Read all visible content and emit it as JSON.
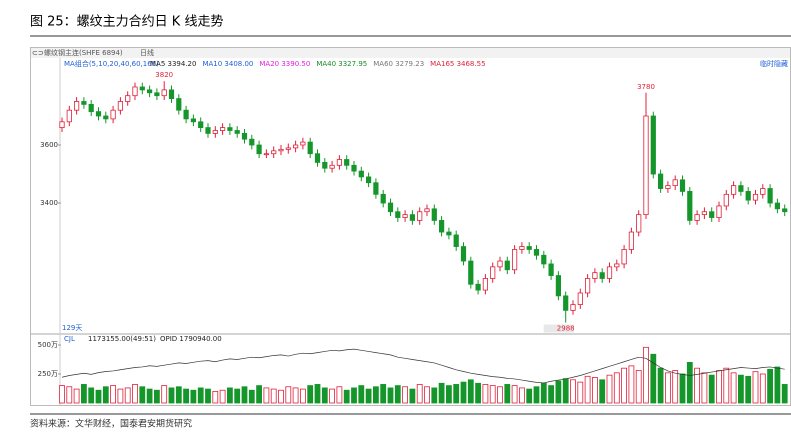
{
  "chart_data": {
    "type": "candlestick",
    "title": "图 25：螺纹主力合约日 K 线走势",
    "symbol": "螺纹钢主连(SHFE 6894)",
    "period": "日线",
    "ma_title": "MA组合(5,10,20,40,60,165)",
    "ma_labels": [
      {
        "text": "MA5 3394.20",
        "color": "#222222"
      },
      {
        "text": "MA10 3408.00",
        "color": "#1f5fd6"
      },
      {
        "text": "MA20 3390.50",
        "color": "#e020e0"
      },
      {
        "text": "MA40 3327.95",
        "color": "#1a8a2a"
      },
      {
        "text": "MA60 3279.23",
        "color": "#777777"
      },
      {
        "text": "MA165 3468.55",
        "color": "#e0203a"
      }
    ],
    "hide_label": "临时隐藏",
    "days_label": "129天",
    "up_color": "#e0203a",
    "down_color": "#14962a",
    "ylim": [
      2952,
      3893
    ],
    "yticks": [
      3600,
      3400
    ],
    "annotations": [
      "3820",
      "3780",
      "2988"
    ],
    "open": [
      3660,
      3680,
      3720,
      3750,
      3740,
      3715,
      3700,
      3690,
      3720,
      3750,
      3770,
      3800,
      3790,
      3780,
      3770,
      3790,
      3760,
      3720,
      3690,
      3680,
      3660,
      3640,
      3650,
      3660,
      3650,
      3640,
      3620,
      3600,
      3570,
      3570,
      3580,
      3585,
      3590,
      3600,
      3610,
      3570,
      3540,
      3520,
      3530,
      3550,
      3530,
      3510,
      3490,
      3470,
      3430,
      3400,
      3370,
      3350,
      3360,
      3340,
      3370,
      3380,
      3340,
      3300,
      3290,
      3250,
      3200,
      3120,
      3100,
      3140,
      3180,
      3200,
      3170,
      3240,
      3250,
      3240,
      3220,
      3190,
      3150,
      3080,
      3030,
      3050,
      3090,
      3140,
      3160,
      3140,
      3180,
      3190,
      3240,
      3300,
      3360,
      3700,
      3500,
      3450,
      3460,
      3480,
      3440,
      3340,
      3360,
      3370,
      3350,
      3390,
      3430,
      3460,
      3440,
      3410,
      3430,
      3450,
      3400,
      3380
    ],
    "high": [
      3695,
      3735,
      3765,
      3765,
      3755,
      3730,
      3715,
      3735,
      3765,
      3785,
      3815,
      3815,
      3805,
      3795,
      3820,
      3805,
      3775,
      3735,
      3705,
      3695,
      3675,
      3665,
      3675,
      3675,
      3665,
      3655,
      3635,
      3615,
      3585,
      3595,
      3600,
      3605,
      3615,
      3625,
      3625,
      3585,
      3555,
      3545,
      3565,
      3565,
      3545,
      3525,
      3505,
      3485,
      3445,
      3415,
      3385,
      3375,
      3375,
      3385,
      3395,
      3395,
      3355,
      3315,
      3305,
      3265,
      3215,
      3135,
      3155,
      3195,
      3215,
      3215,
      3255,
      3265,
      3265,
      3255,
      3235,
      3205,
      3165,
      3095,
      3065,
      3105,
      3155,
      3175,
      3175,
      3195,
      3205,
      3255,
      3315,
      3375,
      3780,
      3715,
      3515,
      3475,
      3495,
      3495,
      3455,
      3375,
      3385,
      3385,
      3405,
      3445,
      3475,
      3475,
      3455,
      3445,
      3465,
      3465,
      3415,
      3395
    ],
    "low": [
      3645,
      3665,
      3705,
      3725,
      3700,
      3685,
      3675,
      3675,
      3705,
      3735,
      3755,
      3775,
      3765,
      3755,
      3755,
      3745,
      3705,
      3675,
      3665,
      3645,
      3625,
      3625,
      3635,
      3635,
      3625,
      3605,
      3585,
      3555,
      3555,
      3555,
      3565,
      3570,
      3575,
      3585,
      3555,
      3525,
      3505,
      3505,
      3515,
      3515,
      3495,
      3475,
      3455,
      3415,
      3385,
      3355,
      3335,
      3335,
      3325,
      3325,
      3355,
      3325,
      3285,
      3275,
      3235,
      3185,
      3105,
      3085,
      3085,
      3125,
      3165,
      3155,
      3155,
      3225,
      3225,
      3205,
      3175,
      3135,
      3065,
      2988,
      3015,
      3035,
      3075,
      3125,
      3125,
      3125,
      3165,
      3175,
      3225,
      3285,
      3345,
      3485,
      3435,
      3435,
      3445,
      3425,
      3325,
      3325,
      3345,
      3335,
      3335,
      3375,
      3415,
      3425,
      3395,
      3395,
      3415,
      3385,
      3365,
      3355
    ],
    "close": [
      3680,
      3720,
      3750,
      3740,
      3715,
      3700,
      3690,
      3720,
      3750,
      3770,
      3800,
      3790,
      3780,
      3770,
      3790,
      3760,
      3720,
      3690,
      3680,
      3660,
      3640,
      3650,
      3660,
      3650,
      3640,
      3620,
      3600,
      3570,
      3570,
      3580,
      3585,
      3590,
      3600,
      3610,
      3570,
      3540,
      3520,
      3530,
      3550,
      3530,
      3510,
      3490,
      3470,
      3430,
      3400,
      3370,
      3350,
      3360,
      3340,
      3370,
      3380,
      3340,
      3300,
      3290,
      3250,
      3200,
      3120,
      3100,
      3140,
      3180,
      3200,
      3170,
      3240,
      3250,
      3240,
      3220,
      3190,
      3150,
      3080,
      3030,
      3050,
      3090,
      3140,
      3160,
      3140,
      3180,
      3190,
      3240,
      3300,
      3360,
      3700,
      3500,
      3450,
      3460,
      3480,
      3440,
      3340,
      3360,
      3370,
      3350,
      3390,
      3430,
      3460,
      3440,
      3410,
      3430,
      3450,
      3400,
      3380,
      3370
    ],
    "volume": {
      "label": "CJL",
      "info": "1173155.00(49:51)",
      "ylim": [
        0,
        543
      ],
      "yticks": [
        {
          "value": 500,
          "label": "500万"
        },
        {
          "value": 250,
          "label": "250万"
        }
      ],
      "values": [
        150,
        140,
        120,
        160,
        130,
        110,
        140,
        150,
        120,
        130,
        160,
        140,
        120,
        110,
        150,
        130,
        140,
        120,
        110,
        130,
        120,
        100,
        110,
        130,
        120,
        140,
        110,
        150,
        130,
        120,
        110,
        140,
        130,
        120,
        150,
        160,
        130,
        120,
        140,
        110,
        130,
        150,
        120,
        140,
        160,
        130,
        150,
        140,
        120,
        160,
        140,
        130,
        170,
        150,
        160,
        180,
        200,
        170,
        160,
        150,
        140,
        160,
        150,
        130,
        120,
        140,
        170,
        150,
        190,
        210,
        200,
        180,
        230,
        220,
        200,
        240,
        260,
        300,
        320,
        280,
        480,
        420,
        300,
        260,
        280,
        250,
        350,
        300,
        260,
        240,
        280,
        300,
        260,
        240,
        230,
        270,
        250,
        290,
        310,
        160
      ]
    },
    "open_interest": {
      "label": "OPID 1790940.00",
      "color": "#333333",
      "y2lim": [
        120,
        230
      ],
      "values": [
        165,
        168,
        170,
        172,
        170,
        173,
        175,
        176,
        178,
        180,
        182,
        183,
        185,
        184,
        186,
        188,
        190,
        189,
        191,
        193,
        194,
        192,
        195,
        197,
        196,
        198,
        200,
        199,
        201,
        203,
        204,
        202,
        205,
        207,
        206,
        208,
        210,
        212,
        211,
        213,
        214,
        212,
        210,
        208,
        206,
        204,
        200,
        198,
        196,
        194,
        192,
        190,
        186,
        182,
        178,
        175,
        172,
        170,
        168,
        166,
        165,
        163,
        162,
        160,
        158,
        156,
        155,
        158,
        160,
        162,
        165,
        168,
        172,
        176,
        180,
        184,
        188,
        192,
        196,
        200,
        198,
        190,
        182,
        176,
        172,
        170,
        168,
        170,
        172,
        174,
        176,
        178,
        180,
        182,
        181,
        180,
        182,
        183,
        181,
        179
      ]
    }
  },
  "source": "资料来源：文华财经，国泰君安期货研究"
}
